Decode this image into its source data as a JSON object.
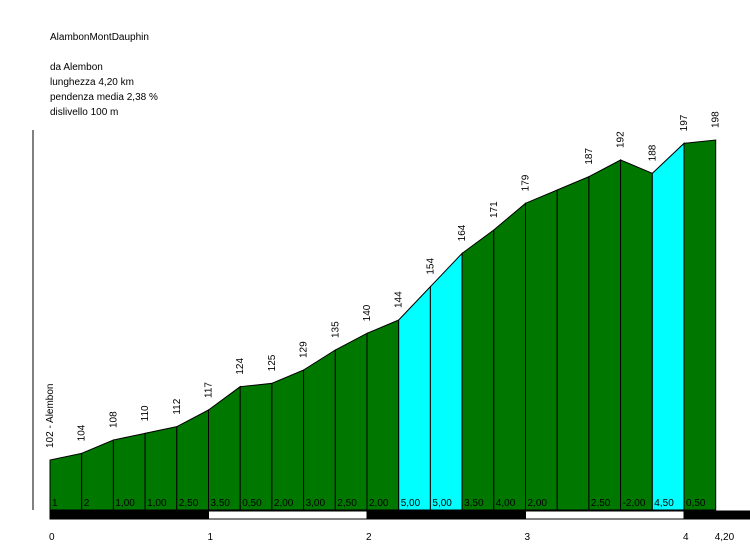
{
  "chart_data": {
    "type": "area",
    "title": "AlambonMontDauphin",
    "info": [
      "da Alembon",
      "lunghezza 4,20 km",
      "pendenza media 2,38 %",
      "dislivello 100 m"
    ],
    "x": [
      0,
      0.2,
      0.4,
      0.6,
      0.8,
      1.0,
      1.2,
      1.4,
      1.6,
      1.8,
      2.0,
      2.2,
      2.4,
      2.6,
      2.8,
      3.0,
      3.2,
      3.4,
      3.6,
      3.8,
      4.0,
      4.2
    ],
    "elevations": [
      102,
      104,
      108,
      110,
      112,
      117,
      124,
      125,
      129,
      135,
      140,
      144,
      154,
      164,
      171,
      179,
      183,
      187,
      192,
      188,
      197,
      198
    ],
    "elevation_labels": [
      "102 - Alembon",
      "104",
      "108",
      "110",
      "112",
      "117",
      "124",
      "125",
      "129",
      "135",
      "140",
      "144",
      "154",
      "164",
      "171",
      "179",
      "",
      "187",
      "192",
      "188",
      "197",
      "198"
    ],
    "gradients": [
      "1",
      "2",
      "1,00",
      "1,00",
      "2,50",
      "3,50",
      "0,50",
      "2,00",
      "3,00",
      "2,50",
      "2,00",
      "5,00",
      "5,00",
      "3,50",
      "4,00",
      "2,00",
      "",
      "2,50",
      "-2,00",
      "4,50",
      "0,50"
    ],
    "km_ticks": [
      "0",
      "1",
      "2",
      "3",
      "4",
      "4,20"
    ],
    "ylim": [
      80,
      205
    ],
    "colors": {
      "normal": "#007800",
      "steep": "#00ffff",
      "outline": "#000000"
    }
  }
}
